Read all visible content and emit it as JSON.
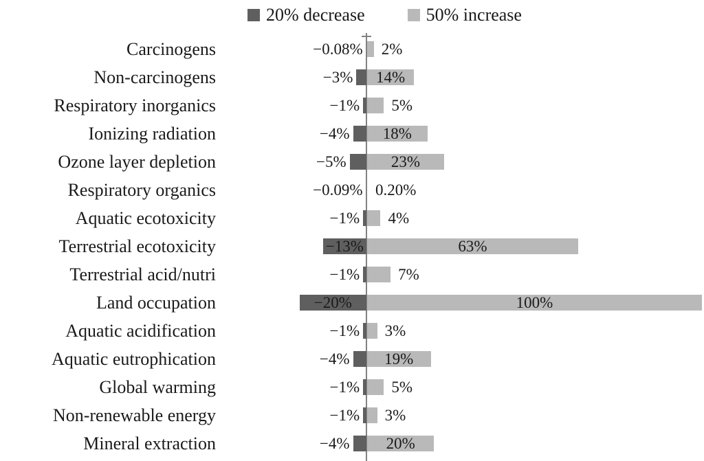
{
  "colors": {
    "decrease_series": "#5f5f5f",
    "increase_series": "#b9b9b9",
    "axis": "#828282",
    "label_text": "#1a1a1a",
    "background": "#ffffff"
  },
  "chart_data": {
    "type": "bar",
    "orientation": "horizontal",
    "title": "",
    "xlabel": "",
    "ylabel": "",
    "xlim": [
      -20,
      100
    ],
    "grid": false,
    "legend_position": "top",
    "categories": [
      "Carcinogens",
      "Non-carcinogens",
      "Respiratory inorganics",
      "Ionizing radiation",
      "Ozone layer depletion",
      "Respiratory organics",
      "Aquatic ecotoxicity",
      "Terrestrial ecotoxicity",
      "Terrestrial acid/nutri",
      "Land occupation",
      "Aquatic acidification",
      "Aquatic eutrophication",
      "Global warming",
      "Non-renewable energy",
      "Mineral extraction"
    ],
    "series": [
      {
        "name": "20% decrease",
        "color": "#5f5f5f",
        "values": [
          -0.08,
          -3,
          -1,
          -4,
          -5,
          -0.09,
          -1,
          -13,
          -1,
          -20,
          -1,
          -4,
          -1,
          -1,
          -4
        ],
        "labels": [
          "−0.08%",
          "−3%",
          "−1%",
          "−4%",
          "−5%",
          "−0.09%",
          "−1%",
          "−13%",
          "−1%",
          "−20%",
          "−1%",
          "−4%",
          "−1%",
          "−1%",
          "−4%"
        ]
      },
      {
        "name": "50% increase",
        "color": "#b9b9b9",
        "values": [
          2,
          14,
          5,
          18,
          23,
          0.2,
          4,
          63,
          7,
          100,
          3,
          19,
          5,
          3,
          20
        ],
        "labels": [
          "2%",
          "14%",
          "5%",
          "18%",
          "23%",
          "0.20%",
          "4%",
          "63%",
          "7%",
          "100%",
          "3%",
          "19%",
          "5%",
          "3%",
          "20%"
        ]
      }
    ]
  }
}
